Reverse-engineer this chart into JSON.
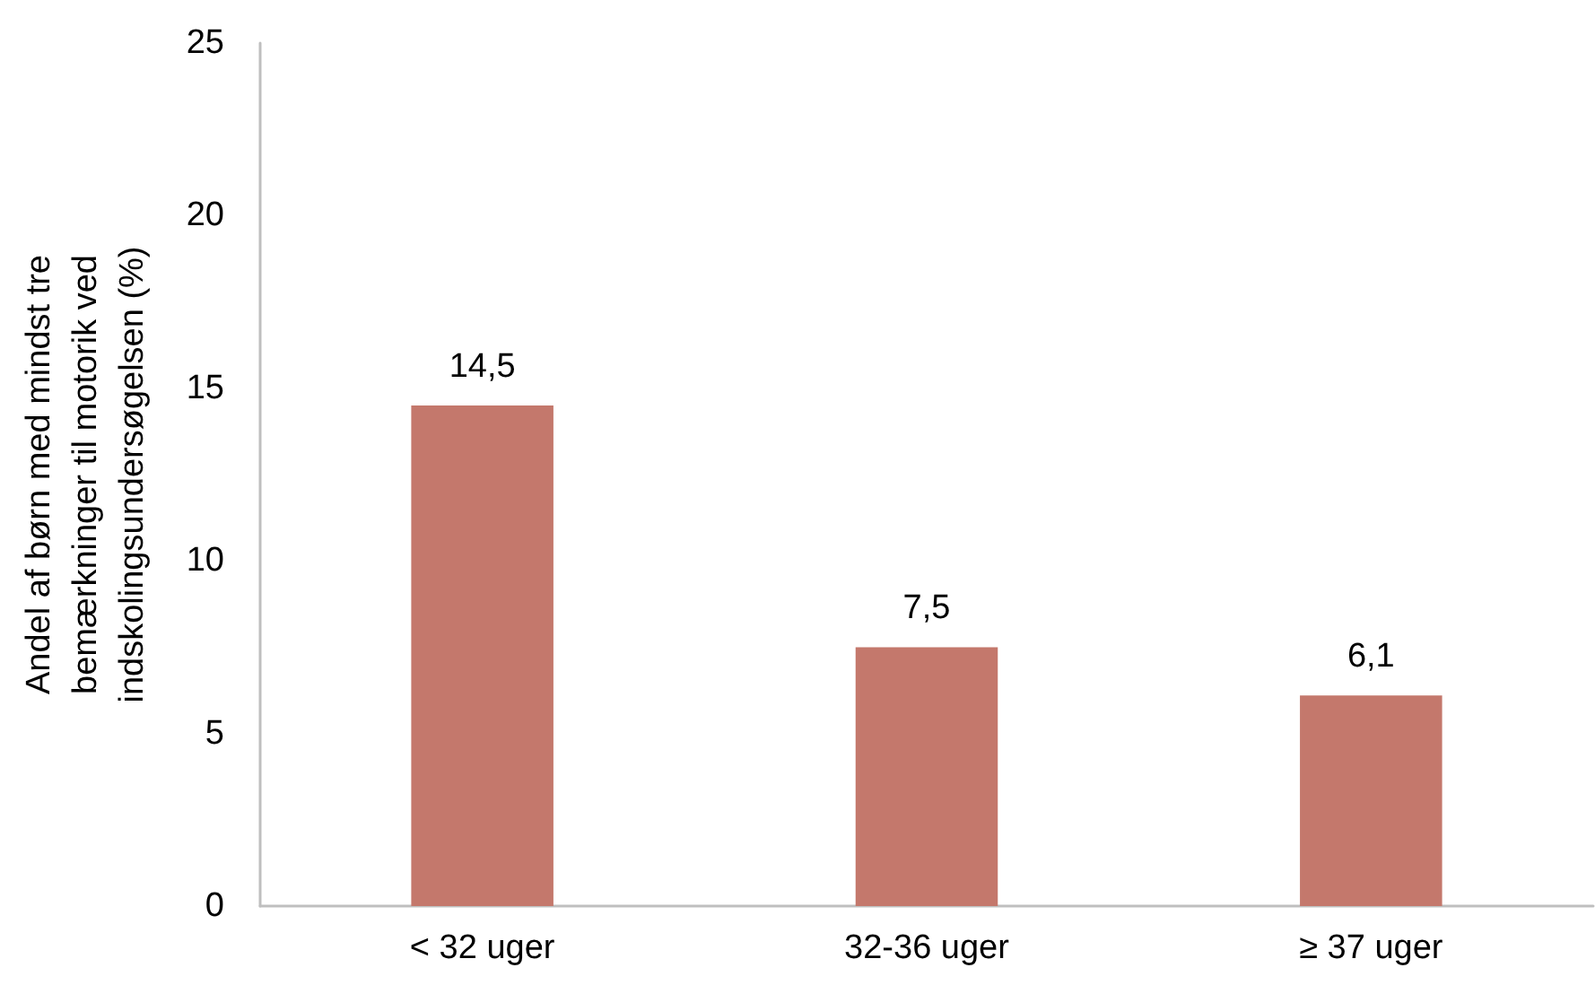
{
  "chart_data": {
    "type": "bar",
    "ylabel": "Andel af børn med mindst tre bemærkninger til motorik ved indskolingsundersøgelsen (%)",
    "categories": [
      "< 32 uger",
      "32-36 uger",
      "≥ 37 uger"
    ],
    "values": [
      14.5,
      7.5,
      6.1
    ],
    "value_labels": [
      "14,5",
      "7,5",
      "6,1"
    ],
    "color": "#c4786c",
    "ylim": [
      0,
      25
    ],
    "yticks": [
      0,
      5,
      10,
      15,
      20,
      25
    ],
    "grid": false
  }
}
